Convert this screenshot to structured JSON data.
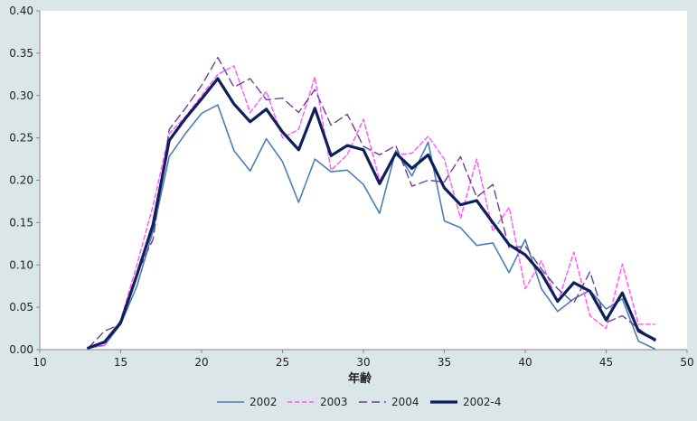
{
  "chart_data": {
    "type": "line",
    "title": "",
    "xlabel": "年齢",
    "ylabel": "",
    "xlim": [
      10,
      50
    ],
    "ylim": [
      0,
      0.4
    ],
    "x_ticks": [
      "10",
      "15",
      "20",
      "25",
      "30",
      "35",
      "40",
      "45",
      "50"
    ],
    "y_ticks": [
      "0.00",
      "0.05",
      "0.10",
      "0.15",
      "0.20",
      "0.25",
      "0.30",
      "0.35",
      "0.40"
    ],
    "grid": false,
    "legend_position": "bottom",
    "x": [
      13,
      14,
      15,
      16,
      17,
      18,
      19,
      20,
      21,
      22,
      23,
      24,
      25,
      26,
      27,
      28,
      29,
      30,
      31,
      32,
      33,
      34,
      35,
      36,
      37,
      38,
      39,
      40,
      41,
      42,
      43,
      44,
      45,
      46,
      47,
      48
    ],
    "series": [
      {
        "name": "2002",
        "color": "#4a7eb8",
        "dash": "solid",
        "values": [
          0.002,
          0.005,
          0.03,
          0.075,
          0.14,
          0.228,
          0.255,
          0.279,
          0.289,
          0.235,
          0.211,
          0.249,
          0.222,
          0.174,
          0.225,
          0.21,
          0.212,
          0.195,
          0.161,
          0.235,
          0.205,
          0.245,
          0.152,
          0.144,
          0.123,
          0.126,
          0.091,
          0.13,
          0.072,
          0.045,
          0.06,
          0.07,
          0.048,
          0.06,
          0.01,
          0.001
        ]
      },
      {
        "name": "2003",
        "color": "#ff55ff",
        "dash": "short-dash",
        "values": [
          0.002,
          0.005,
          0.035,
          0.1,
          0.17,
          0.255,
          0.275,
          0.3,
          0.325,
          0.335,
          0.28,
          0.305,
          0.25,
          0.26,
          0.322,
          0.212,
          0.23,
          0.272,
          0.2,
          0.23,
          0.232,
          0.252,
          0.225,
          0.155,
          0.225,
          0.14,
          0.168,
          0.072,
          0.105,
          0.055,
          0.115,
          0.04,
          0.025,
          0.101,
          0.03,
          0.03
        ]
      },
      {
        "name": "2004",
        "color": "#6b3f9a",
        "dash": "long-dash",
        "values": [
          0.002,
          0.022,
          0.03,
          0.09,
          0.13,
          0.26,
          0.285,
          0.312,
          0.345,
          0.31,
          0.32,
          0.295,
          0.297,
          0.28,
          0.307,
          0.265,
          0.278,
          0.24,
          0.23,
          0.241,
          0.193,
          0.2,
          0.198,
          0.228,
          0.18,
          0.195,
          0.12,
          0.122,
          0.095,
          0.072,
          0.055,
          0.092,
          0.032,
          0.04,
          0.025,
          0.01
        ]
      },
      {
        "name": "2002-4",
        "color": "#0e1f5b",
        "dash": "solid-thick",
        "values": [
          0.002,
          0.009,
          0.032,
          0.088,
          0.148,
          0.247,
          0.273,
          0.296,
          0.32,
          0.29,
          0.269,
          0.284,
          0.257,
          0.236,
          0.285,
          0.229,
          0.241,
          0.236,
          0.196,
          0.232,
          0.214,
          0.23,
          0.191,
          0.171,
          0.176,
          0.15,
          0.124,
          0.112,
          0.09,
          0.057,
          0.079,
          0.069,
          0.035,
          0.067,
          0.022,
          0.012
        ]
      }
    ]
  }
}
